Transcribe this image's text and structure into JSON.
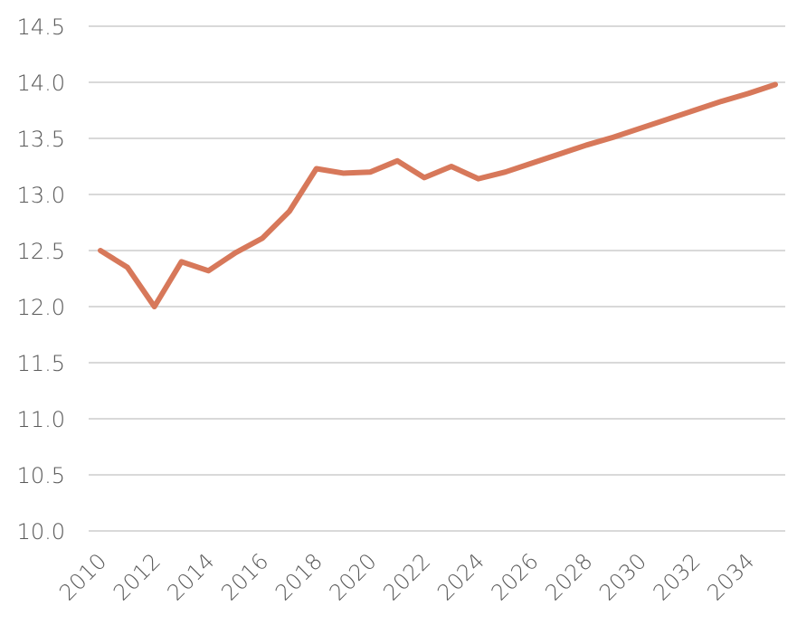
{
  "chart_data": {
    "type": "line",
    "categories": [
      "2010",
      null,
      "2012",
      null,
      "2014",
      null,
      "2016",
      null,
      "2018",
      null,
      "2020",
      null,
      "2022",
      null,
      "2024",
      null,
      "2026",
      null,
      "2028",
      null,
      "2030",
      null,
      "2032",
      null,
      "2034",
      null
    ],
    "series": [
      {
        "color": "#d7785a",
        "values": [
          12.5,
          12.35,
          12.0,
          12.4,
          12.32,
          12.48,
          12.61,
          12.85,
          13.23,
          13.19,
          13.2,
          13.3,
          13.15,
          13.25,
          13.14,
          13.2,
          13.28,
          13.36,
          13.44,
          13.51,
          13.59,
          13.67,
          13.75,
          13.83,
          13.9,
          13.98
        ]
      }
    ],
    "ylim": [
      10,
      14.5
    ],
    "yticks": [
      {
        "value": 10,
        "label": "10.0"
      },
      10.5,
      {
        "value": 11,
        "label": "11.0"
      },
      11.5,
      {
        "value": 12,
        "label": "12.0"
      },
      12.5,
      {
        "value": 13,
        "label": "13.0"
      },
      13.5,
      {
        "value": 14,
        "label": "14.0"
      },
      14.5
    ],
    "grid": true
  }
}
